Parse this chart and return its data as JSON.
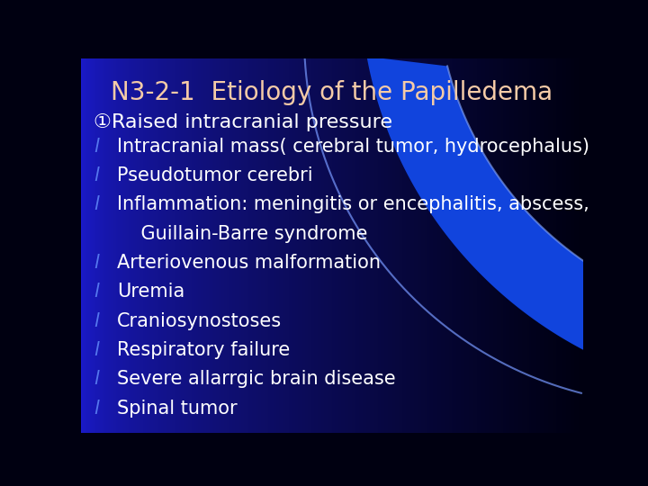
{
  "title": "N3-2-1  Etiology of the Papilledema",
  "title_color": "#F5CBA7",
  "title_fontsize": 20,
  "bg_color": "#1a1acc",
  "header": "①Raised intracranial pressure",
  "header_color": "#ffffff",
  "header_fontsize": 16,
  "bullet_items": [
    "Intracranial mass( cerebral tumor, hydrocephalus)",
    "Pseudotumor cerebri",
    "Inflammation: meningitis or encephalitis, abscess,",
    "    Guillain-Barre syndrome",
    "Arteriovenous malformation",
    "Uremia",
    "Craniosynostoses",
    "Respiratory failure",
    "Severe allarrgic brain disease",
    "Spinal tumor"
  ],
  "bullet_flags": [
    true,
    true,
    true,
    false,
    true,
    true,
    true,
    true,
    true,
    true
  ],
  "bullet_color": "#ffffff",
  "bullet_fontsize": 15,
  "bullet_dot_color": "#5577ee"
}
